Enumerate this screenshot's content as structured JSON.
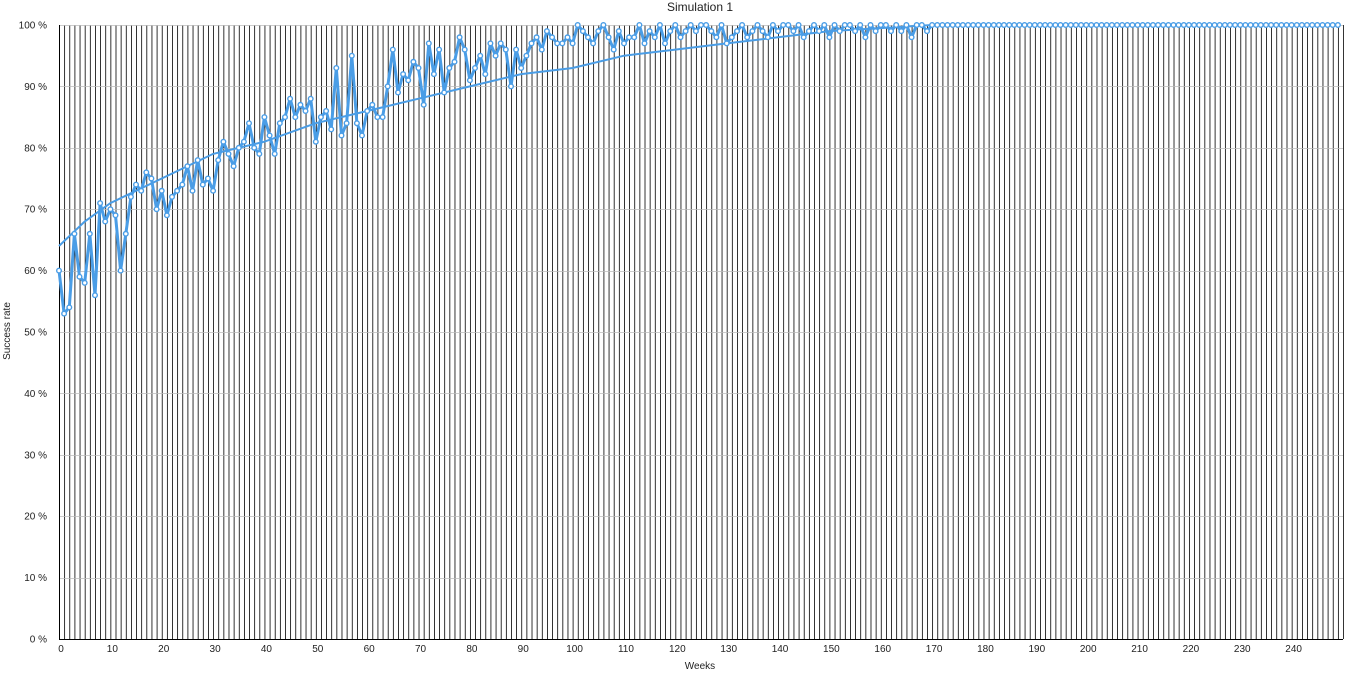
{
  "chart_data": {
    "type": "line",
    "title": "Simulation 1",
    "xlabel": "Weeks",
    "ylabel": "Success rate",
    "xlim": [
      0,
      250
    ],
    "ylim": [
      0,
      100
    ],
    "x_ticks": [
      0,
      10,
      20,
      30,
      40,
      50,
      60,
      70,
      80,
      90,
      100,
      110,
      120,
      130,
      140,
      150,
      160,
      170,
      180,
      190,
      200,
      210,
      220,
      230,
      240
    ],
    "y_ticks": [
      0,
      10,
      20,
      30,
      40,
      50,
      60,
      70,
      80,
      90,
      100
    ],
    "y_tick_labels": [
      "0 %",
      "10 %",
      "20 %",
      "30 %",
      "40 %",
      "50 %",
      "60 %",
      "70 %",
      "80 %",
      "90 %",
      "100 %"
    ],
    "grid": true,
    "legend": "none",
    "colors": {
      "series": "#4a9de6",
      "trend": "#4a9de6",
      "grid": "#000000"
    },
    "series": [
      {
        "values": [
          60,
          53,
          54,
          66,
          59,
          58,
          66,
          56,
          71,
          68,
          70,
          69,
          60,
          66,
          72,
          74,
          73,
          76,
          75,
          70,
          73,
          69,
          72,
          73,
          74,
          77,
          73,
          78,
          74,
          75,
          73,
          78,
          81,
          79,
          77,
          80,
          81,
          84,
          80,
          79,
          85,
          82,
          79,
          84,
          85,
          88,
          85,
          87,
          86,
          88,
          81,
          85,
          86,
          83,
          93,
          82,
          84,
          95,
          84,
          82,
          86,
          87,
          85,
          85,
          90,
          96,
          89,
          92,
          91,
          94,
          93,
          87,
          97,
          92,
          96,
          89,
          93,
          94,
          98,
          96,
          91,
          93,
          95,
          92,
          97,
          95,
          97,
          96,
          90,
          96,
          93,
          95,
          97,
          98,
          96,
          99,
          98,
          97,
          97,
          98,
          97,
          100,
          99,
          98,
          97,
          99,
          100,
          98,
          96,
          99,
          97,
          98,
          98,
          100,
          97,
          99,
          98,
          100,
          97,
          99,
          100,
          98,
          99,
          100,
          99,
          100,
          100,
          99,
          98,
          100,
          97,
          98,
          99,
          100,
          98,
          99,
          100,
          99,
          98,
          100,
          99,
          100,
          100,
          99,
          100,
          98,
          99,
          100,
          99,
          100,
          98,
          100,
          99,
          100,
          100,
          99,
          100,
          98,
          100,
          99,
          100,
          100,
          99,
          100,
          99,
          100,
          98,
          100,
          100,
          99,
          100,
          100,
          100,
          100,
          100,
          100,
          100,
          100,
          100,
          100,
          100,
          100,
          100,
          100,
          100,
          100,
          100,
          100,
          100,
          100,
          100,
          100,
          100,
          100,
          100,
          100,
          100,
          100,
          100,
          100,
          100,
          100,
          100,
          100,
          100,
          100,
          100,
          100,
          100,
          100,
          100,
          100,
          100,
          100,
          100,
          100,
          100,
          100,
          100,
          100,
          100,
          100,
          100,
          100,
          100,
          100,
          100,
          100,
          100,
          100,
          100,
          100,
          100,
          100,
          100,
          100,
          100,
          100,
          100,
          100,
          100,
          100,
          100,
          100,
          100,
          100,
          100,
          100,
          100,
          100
        ]
      }
    ],
    "trendline": {
      "type": "logarithmic",
      "x": [
        0,
        5,
        10,
        20,
        30,
        40,
        50,
        60,
        70,
        80,
        90,
        100,
        110,
        120,
        130,
        140,
        150,
        160,
        170,
        180
      ],
      "values": [
        64,
        68,
        71,
        75,
        79,
        81,
        84,
        86,
        88,
        90,
        92,
        93,
        95,
        96,
        97,
        98,
        99,
        99.5,
        100,
        100
      ]
    }
  }
}
